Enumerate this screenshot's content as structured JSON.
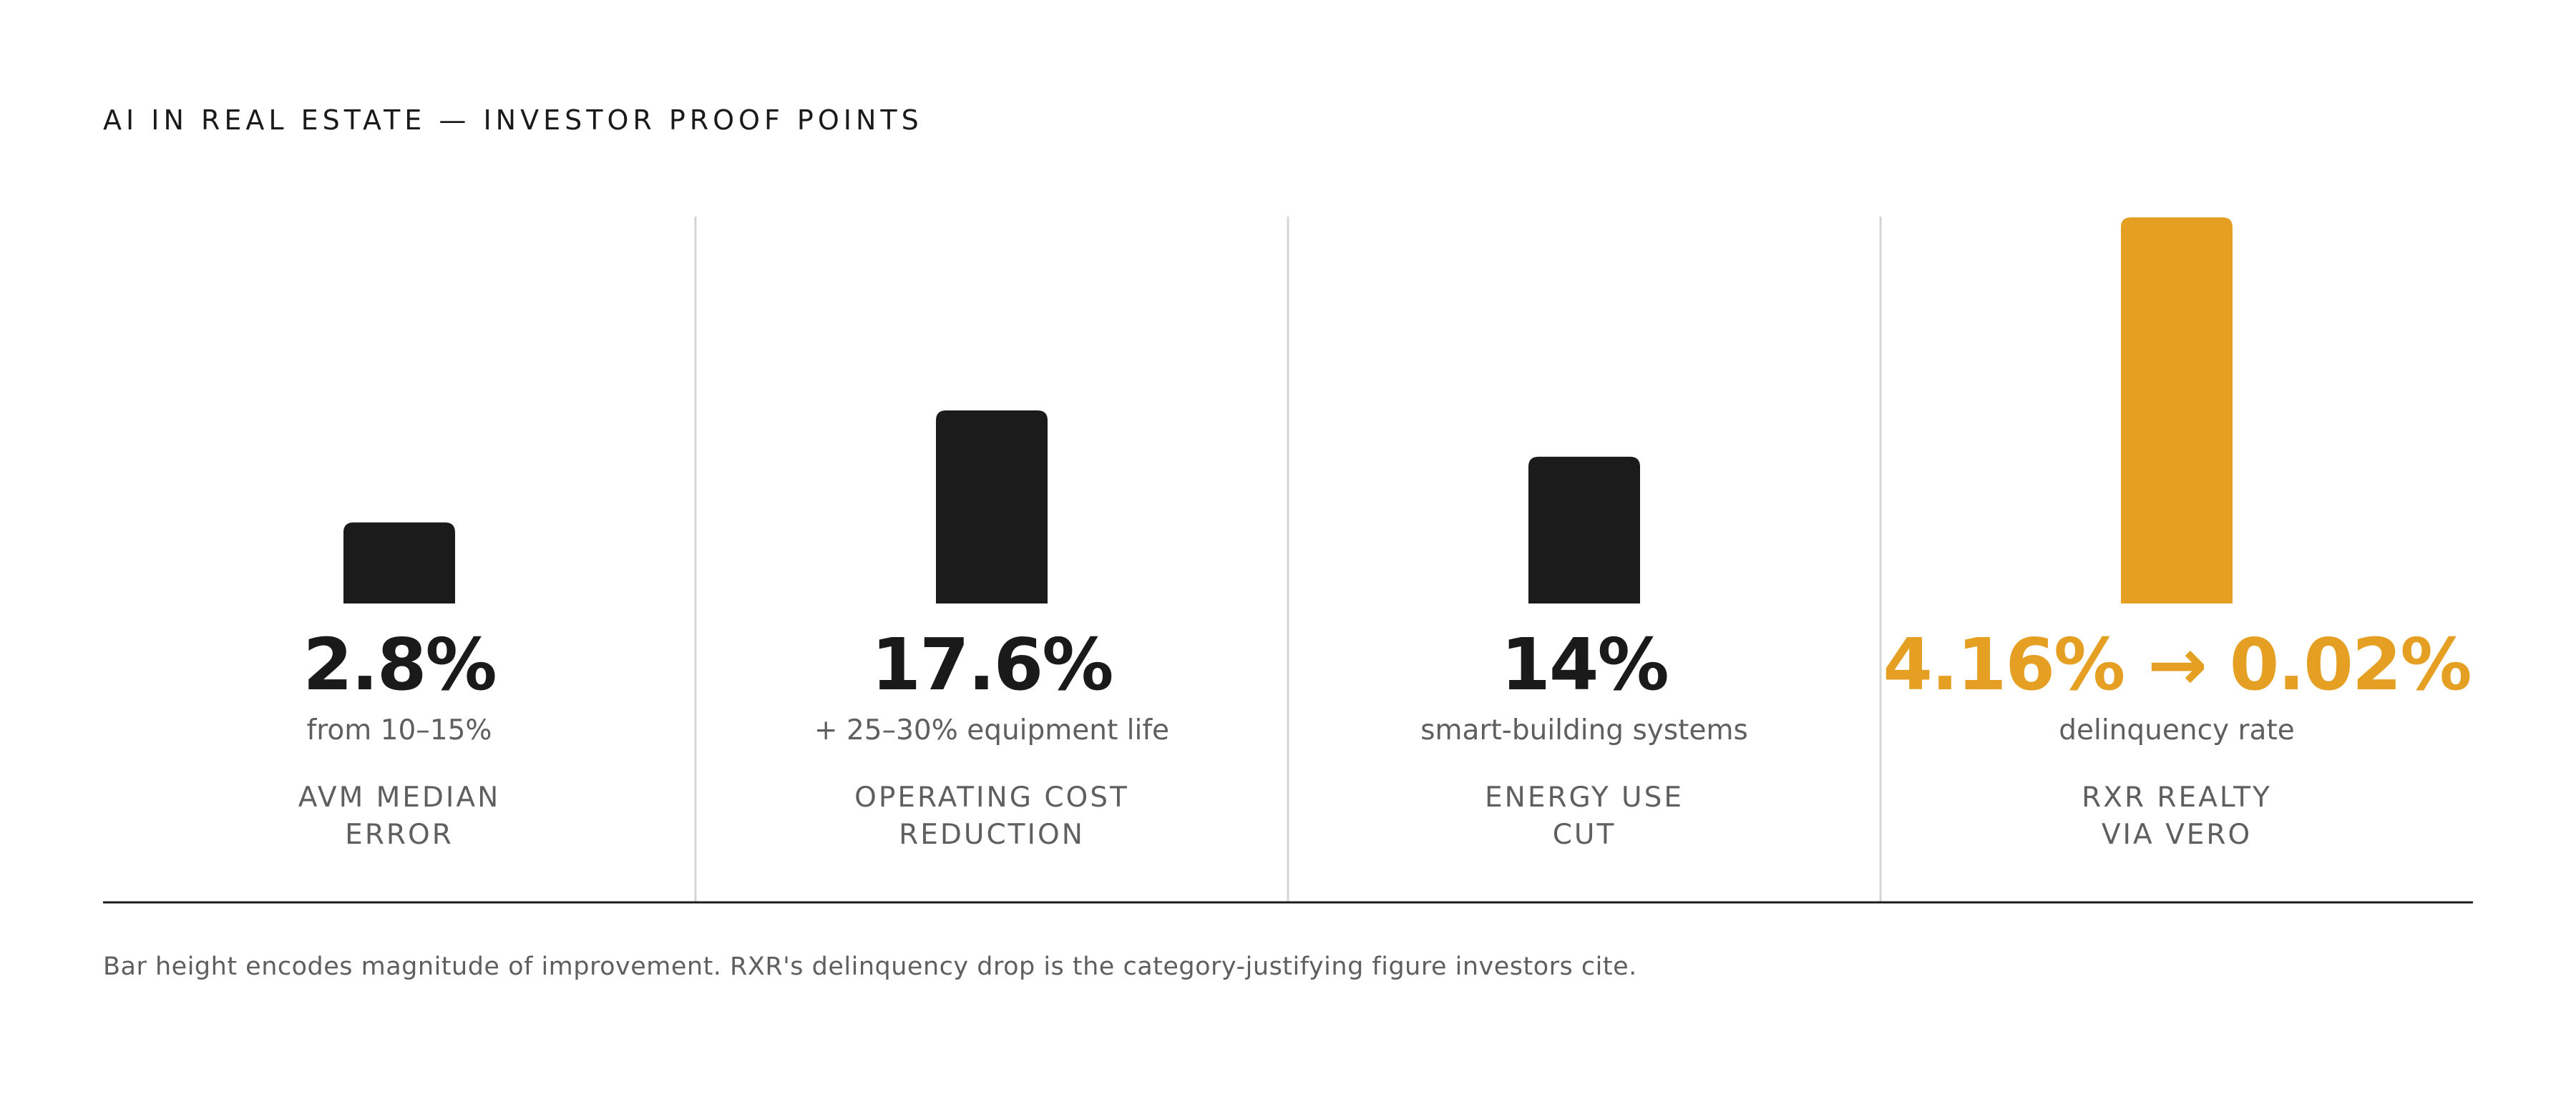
{
  "title": "AI IN REAL ESTATE — INVESTOR PROOF POINTS",
  "footnote": "Bar height encodes magnitude of improvement. RXR's delinquency drop is the category-justifying figure investors cite.",
  "colors": {
    "bar_default": "#1b1b1b",
    "bar_highlight": "#e5a023",
    "text_primary": "#1a1a1a",
    "text_secondary": "#5f5f5f",
    "divider": "#d4d4d4",
    "baseline": "#1a1a1a"
  },
  "chart_data": {
    "type": "bar",
    "title": "AI IN REAL ESTATE — INVESTOR PROOF POINTS",
    "xlabel": "",
    "ylabel": "",
    "grid": false,
    "categories": [
      "AVM MEDIAN ERROR",
      "OPERATING COST REDUCTION",
      "ENERGY USE CUT",
      "RXR REALTY VIA VERO"
    ],
    "values": [
      0.21,
      0.5,
      0.38,
      1.0
    ],
    "value_note": "relative magnitude of improvement",
    "items": [
      {
        "value_text": "2.8%",
        "sub_text": "from 10–15%",
        "label_lines": [
          "AVM MEDIAN",
          "ERROR"
        ],
        "magnitude": 0.21,
        "highlight": false
      },
      {
        "value_text": "17.6%",
        "sub_text": "+ 25–30% equipment life",
        "label_lines": [
          "OPERATING COST",
          "REDUCTION"
        ],
        "magnitude": 0.5,
        "highlight": false
      },
      {
        "value_text": "14%",
        "sub_text": "smart-building systems",
        "label_lines": [
          "ENERGY USE",
          "CUT"
        ],
        "magnitude": 0.38,
        "highlight": false
      },
      {
        "value_text": "4.16% → 0.02%",
        "sub_text": "delinquency rate",
        "label_lines": [
          "RXR REALTY",
          "VIA VERO"
        ],
        "magnitude": 1.0,
        "highlight": true
      }
    ]
  }
}
